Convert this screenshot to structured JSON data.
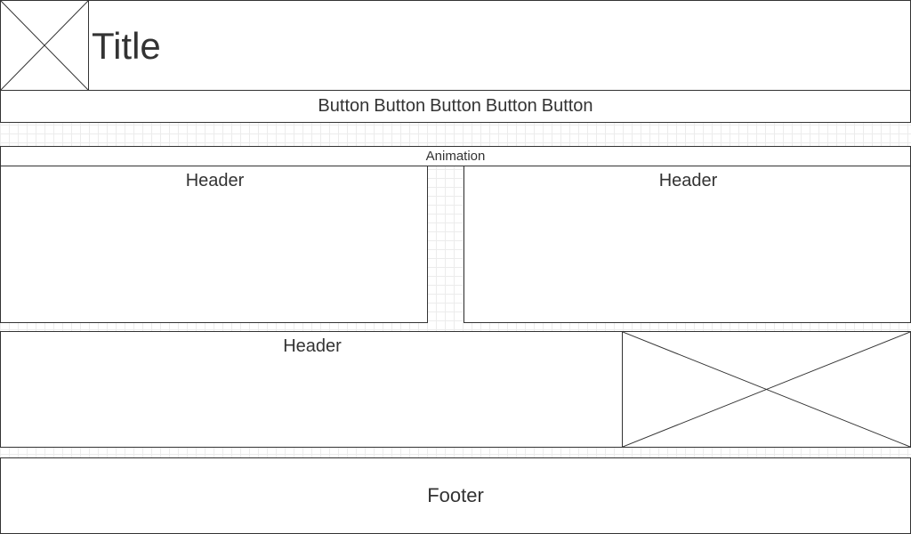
{
  "header": {
    "title": "Title"
  },
  "nav": {
    "buttons": [
      "Button",
      "Button",
      "Button",
      "Button",
      "Button"
    ]
  },
  "animation": {
    "label": "Animation"
  },
  "panels": {
    "left": {
      "header": "Header"
    },
    "right": {
      "header": "Header"
    },
    "wide": {
      "header": "Header"
    }
  },
  "footer": {
    "label": "Footer"
  },
  "colors": {
    "stroke": "#333333",
    "grid": "#ececec",
    "background": "#ffffff"
  }
}
